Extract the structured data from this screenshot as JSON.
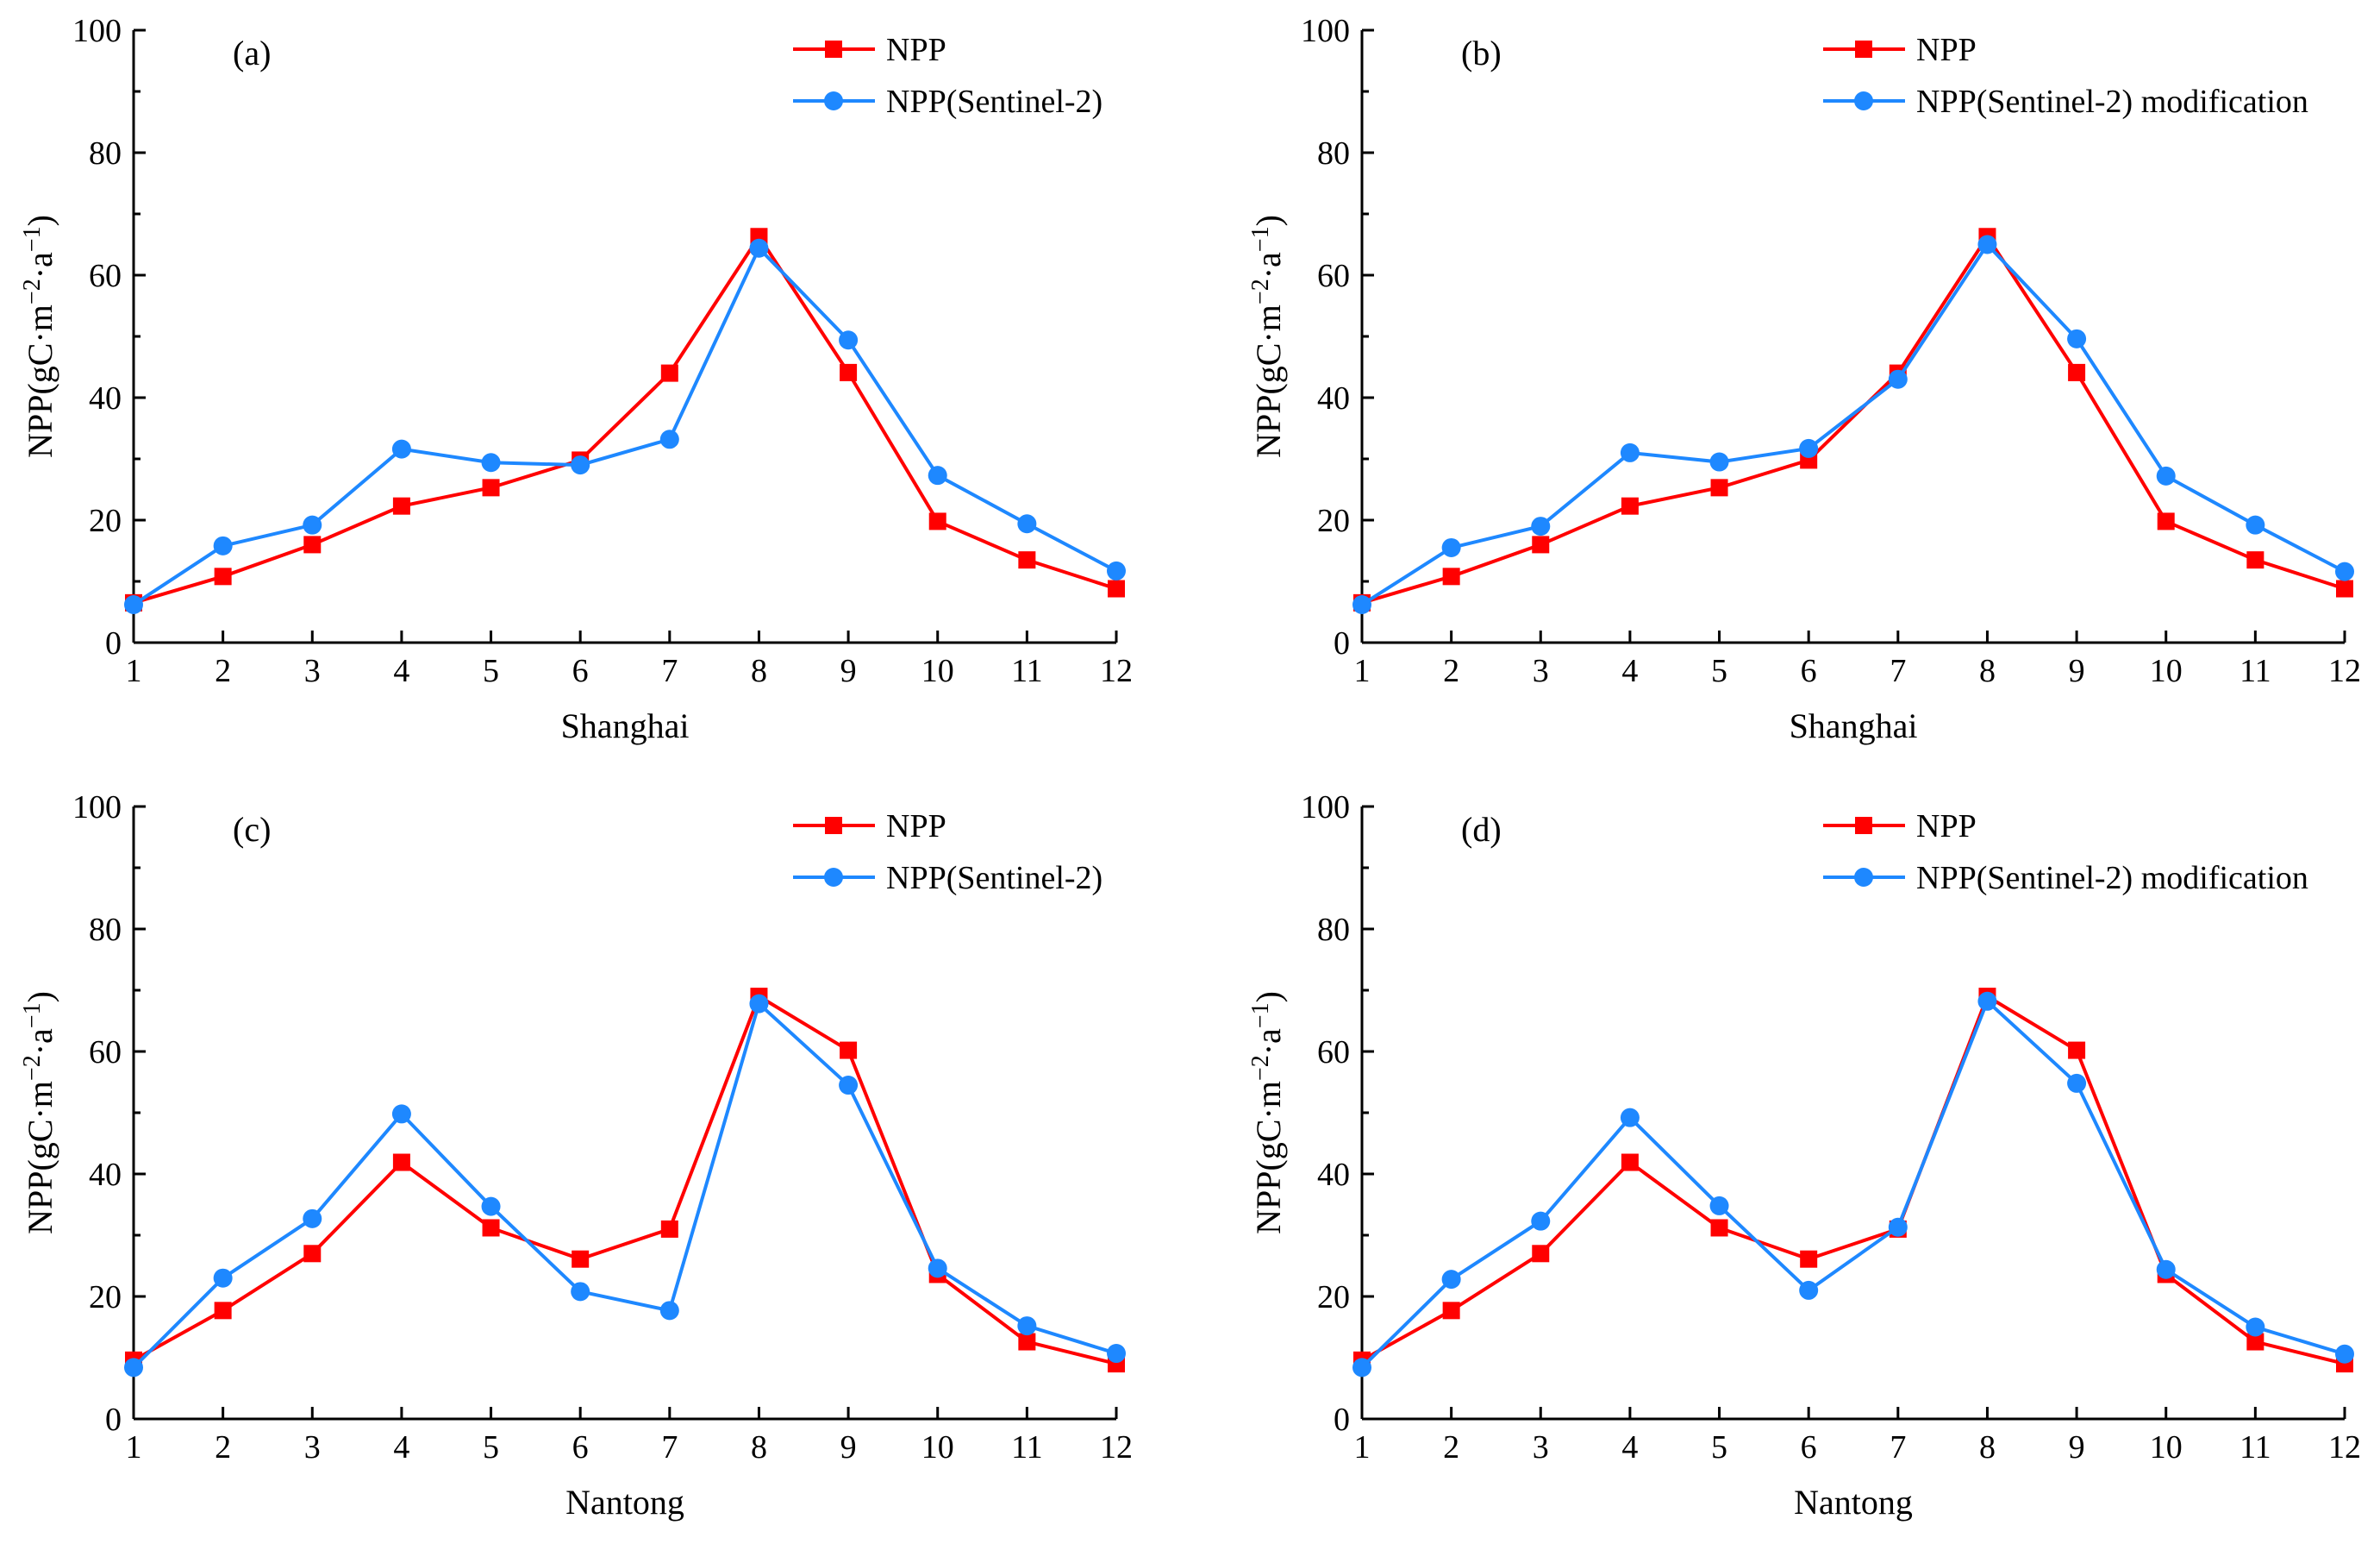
{
  "colors": {
    "npp": "#ff0000",
    "sentinel": "#1e88ff",
    "axis": "#000000"
  },
  "chart_data": [
    {
      "type": "line",
      "panel_label": "(a)",
      "xlabel": "Shanghai",
      "ylabel": "NPP(gC·m−2·a−1)",
      "ylabel_parts": {
        "base": "NPP(gC·m",
        "exp1": "−2",
        "mid": "·a",
        "exp2": "−1",
        "end": ")"
      },
      "x": [
        1,
        2,
        3,
        4,
        5,
        6,
        7,
        8,
        9,
        10,
        11,
        12
      ],
      "xlim": [
        1,
        12
      ],
      "ylim": [
        0,
        100
      ],
      "yticks": [
        0,
        20,
        40,
        60,
        80,
        100
      ],
      "legend_position": "top-right",
      "series": [
        {
          "name": "NPP",
          "color": "#ff0000",
          "marker": "square",
          "values": [
            6.5,
            10.8,
            16.0,
            22.3,
            25.3,
            29.8,
            44.0,
            66.3,
            44.1,
            19.8,
            13.5,
            8.8
          ]
        },
        {
          "name": "NPP(Sentinel-2)",
          "color": "#1e88ff",
          "marker": "circle",
          "values": [
            6.2,
            15.8,
            19.2,
            31.6,
            29.4,
            29.0,
            33.2,
            64.4,
            49.4,
            27.3,
            19.4,
            11.7
          ]
        }
      ]
    },
    {
      "type": "line",
      "panel_label": "(b)",
      "xlabel": "Shanghai",
      "ylabel": "NPP(gC·m−2·a−1)",
      "ylabel_parts": {
        "base": "NPP(gC·m",
        "exp1": "−2",
        "mid": "·a",
        "exp2": "−1",
        "end": ")"
      },
      "x": [
        1,
        2,
        3,
        4,
        5,
        6,
        7,
        8,
        9,
        10,
        11,
        12
      ],
      "xlim": [
        1,
        12
      ],
      "ylim": [
        0,
        100
      ],
      "yticks": [
        0,
        20,
        40,
        60,
        80,
        100
      ],
      "legend_position": "top-right",
      "series": [
        {
          "name": "NPP",
          "color": "#ff0000",
          "marker": "square",
          "values": [
            6.5,
            10.8,
            16.0,
            22.3,
            25.3,
            29.8,
            44.0,
            66.3,
            44.1,
            19.8,
            13.5,
            8.8
          ]
        },
        {
          "name": "NPP(Sentinel-2) modification",
          "color": "#1e88ff",
          "marker": "circle",
          "values": [
            6.2,
            15.5,
            19.0,
            31.0,
            29.5,
            31.7,
            43.0,
            65.0,
            49.6,
            27.2,
            19.2,
            11.6
          ]
        }
      ]
    },
    {
      "type": "line",
      "panel_label": "(c)",
      "xlabel": "Nantong",
      "ylabel": "NPP(gC·m−2·a−1)",
      "ylabel_parts": {
        "base": "NPP(gC·m",
        "exp1": "−2",
        "mid": "·a",
        "exp2": "−1",
        "end": ")"
      },
      "x": [
        1,
        2,
        3,
        4,
        5,
        6,
        7,
        8,
        9,
        10,
        11,
        12
      ],
      "xlim": [
        1,
        12
      ],
      "ylim": [
        0,
        100
      ],
      "yticks": [
        0,
        20,
        40,
        60,
        80,
        100
      ],
      "legend_position": "top-right",
      "series": [
        {
          "name": "NPP",
          "color": "#ff0000",
          "marker": "square",
          "values": [
            9.6,
            17.7,
            27.0,
            41.9,
            31.2,
            26.1,
            31.0,
            69.0,
            60.2,
            23.6,
            12.6,
            9.0
          ]
        },
        {
          "name": "NPP(Sentinel-2)",
          "color": "#1e88ff",
          "marker": "circle",
          "values": [
            8.4,
            23.0,
            32.7,
            49.8,
            34.7,
            20.8,
            17.7,
            67.8,
            54.5,
            24.6,
            15.2,
            10.7
          ]
        }
      ]
    },
    {
      "type": "line",
      "panel_label": "(d)",
      "xlabel": "Nantong",
      "ylabel": "NPP(gC·m−2·a−1)",
      "ylabel_parts": {
        "base": "NPP(gC·m",
        "exp1": "−2",
        "mid": "·a",
        "exp2": "−1",
        "end": ")"
      },
      "x": [
        1,
        2,
        3,
        4,
        5,
        6,
        7,
        8,
        9,
        10,
        11,
        12
      ],
      "xlim": [
        1,
        12
      ],
      "ylim": [
        0,
        100
      ],
      "yticks": [
        0,
        20,
        40,
        60,
        80,
        100
      ],
      "legend_position": "top-right",
      "series": [
        {
          "name": "NPP",
          "color": "#ff0000",
          "marker": "square",
          "values": [
            9.6,
            17.7,
            27.0,
            41.9,
            31.2,
            26.1,
            31.0,
            69.0,
            60.2,
            23.6,
            12.6,
            9.0
          ]
        },
        {
          "name": "NPP(Sentinel-2) modification",
          "color": "#1e88ff",
          "marker": "circle",
          "values": [
            8.4,
            22.8,
            32.3,
            49.2,
            34.8,
            21.0,
            31.3,
            68.2,
            54.8,
            24.4,
            15.0,
            10.6
          ]
        }
      ]
    }
  ]
}
